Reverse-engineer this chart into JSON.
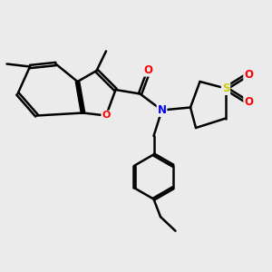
{
  "background_color": "#ebebeb",
  "bond_color": "#000000",
  "atom_colors": {
    "O": "#ff0000",
    "N": "#0000ff",
    "S": "#cccc00",
    "C": "#000000"
  },
  "bond_width": 1.8,
  "figsize": [
    3.0,
    3.0
  ],
  "dpi": 100
}
